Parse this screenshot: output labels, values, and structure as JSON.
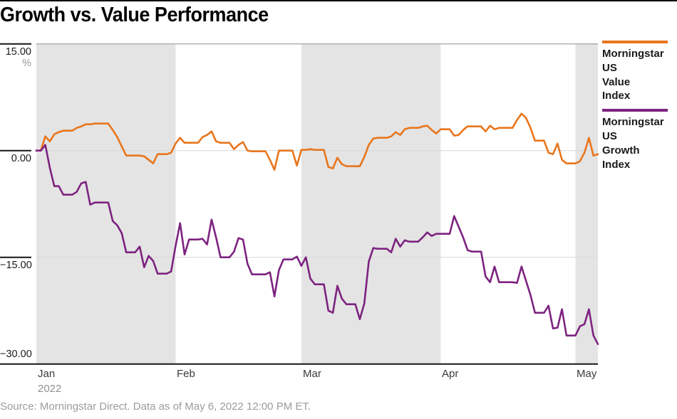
{
  "page": {
    "title": "Growth vs. Value Performance",
    "source_note": "Source: Morningstar Direct. Data as of May 6, 2022 12:00 PM ET."
  },
  "chart_data": {
    "type": "line",
    "title": "Growth vs. Value Performance",
    "y_unit": "%",
    "ylim": [
      -30,
      15
    ],
    "x_days_range": [
      0,
      125
    ],
    "grid": "horizontal-only",
    "legend_position": "right",
    "y_ticks": [
      {
        "value": 15,
        "label": "15.00"
      },
      {
        "value": 0,
        "label": "0.00"
      },
      {
        "value": -15,
        "label": "−15.00"
      },
      {
        "value": -30,
        "label": "−30.00"
      }
    ],
    "x_axis": {
      "months": [
        {
          "label": "Jan",
          "sublabel": "2022",
          "start_day": 0,
          "end_day": 31,
          "shaded": true
        },
        {
          "label": "Feb",
          "start_day": 31,
          "end_day": 59,
          "shaded": false
        },
        {
          "label": "Mar",
          "start_day": 59,
          "end_day": 90,
          "shaded": true
        },
        {
          "label": "Apr",
          "start_day": 90,
          "end_day": 120,
          "shaded": false
        },
        {
          "label": "May",
          "start_day": 120,
          "end_day": 125,
          "shaded": true
        }
      ]
    },
    "colors": {
      "value_series": "#E8761D",
      "growth_series": "#7D2380",
      "band": "#E4E4E4",
      "gridline": "#D7D7D7",
      "plot_top_line": "#8D8D8D",
      "axis": "#161616"
    },
    "legend": [
      {
        "id": "value",
        "label": "Morningstar US Value Index",
        "color": "#E8761D"
      },
      {
        "id": "growth",
        "label": "Morningstar US Growth Index",
        "color": "#7D2380"
      }
    ],
    "dates": [
      "Dec 31",
      "Jan 3",
      "Jan 4",
      "Jan 5",
      "Jan 6",
      "Jan 7",
      "Jan 10",
      "Jan 11",
      "Jan 12",
      "Jan 13",
      "Jan 14",
      "Jan 18",
      "Jan 19",
      "Jan 20",
      "Jan 21",
      "Jan 24",
      "Jan 25",
      "Jan 26",
      "Jan 27",
      "Jan 28",
      "Jan 31",
      "Feb 1",
      "Feb 2",
      "Feb 3",
      "Feb 4",
      "Feb 7",
      "Feb 8",
      "Feb 9",
      "Feb 10",
      "Feb 11",
      "Feb 14",
      "Feb 15",
      "Feb 16",
      "Feb 17",
      "Feb 18",
      "Feb 22",
      "Feb 23",
      "Feb 24",
      "Feb 25",
      "Feb 28",
      "Mar 1",
      "Mar 2",
      "Mar 3",
      "Mar 4",
      "Mar 7",
      "Mar 8",
      "Mar 9",
      "Mar 10",
      "Mar 11",
      "Mar 14",
      "Mar 15",
      "Mar 16",
      "Mar 17",
      "Mar 18",
      "Mar 21",
      "Mar 22",
      "Mar 23",
      "Mar 24",
      "Mar 25",
      "Mar 28",
      "Mar 29",
      "Mar 30",
      "Mar 31",
      "Apr 1",
      "Apr 4",
      "Apr 5",
      "Apr 6",
      "Apr 7",
      "Apr 8",
      "Apr 11",
      "Apr 12",
      "Apr 13",
      "Apr 14",
      "Apr 18",
      "Apr 19",
      "Apr 20",
      "Apr 21",
      "Apr 22",
      "Apr 25",
      "Apr 26",
      "Apr 27",
      "Apr 28",
      "Apr 29",
      "May 2",
      "May 3",
      "May 4",
      "May 5",
      "May 6"
    ],
    "days": [
      0,
      2,
      3,
      4,
      5,
      6,
      9,
      10,
      11,
      12,
      13,
      17,
      18,
      19,
      20,
      23,
      24,
      25,
      26,
      27,
      30,
      31,
      32,
      33,
      34,
      37,
      38,
      39,
      40,
      41,
      44,
      45,
      46,
      47,
      48,
      52,
      53,
      54,
      55,
      58,
      59,
      60,
      61,
      62,
      65,
      66,
      67,
      68,
      69,
      72,
      73,
      74,
      75,
      76,
      79,
      80,
      81,
      82,
      83,
      86,
      87,
      88,
      89,
      90,
      93,
      94,
      95,
      96,
      97,
      100,
      101,
      102,
      103,
      107,
      108,
      109,
      110,
      111,
      114,
      115,
      116,
      117,
      118,
      121,
      122,
      123,
      124,
      125
    ],
    "series": [
      {
        "id": "value",
        "name": "Morningstar US Value Index",
        "color": "#E8761D",
        "values": [
          0.0,
          2.0,
          1.3,
          2.3,
          2.6,
          2.8,
          3.2,
          3.4,
          3.7,
          3.7,
          3.8,
          2.9,
          1.9,
          0.6,
          -0.7,
          -0.7,
          -0.8,
          -1.3,
          -1.8,
          -0.5,
          -0.3,
          1.0,
          1.8,
          1.1,
          1.1,
          1.9,
          2.2,
          2.7,
          1.3,
          1.1,
          0.2,
          0.8,
          1.2,
          0.0,
          -0.1,
          -1.3,
          -2.7,
          0.0,
          0.0,
          -2.1,
          0.1,
          0.1,
          0.2,
          0.1,
          -2.3,
          -2.5,
          -1.0,
          -1.9,
          -2.2,
          -2.2,
          -0.9,
          0.8,
          1.7,
          1.8,
          2.0,
          2.6,
          2.2,
          3.0,
          3.2,
          3.4,
          3.5,
          2.9,
          2.4,
          3.0,
          2.1,
          2.2,
          2.9,
          3.4,
          3.4,
          2.7,
          3.5,
          3.0,
          3.2,
          4.3,
          5.2,
          4.6,
          3.2,
          1.4,
          -0.3,
          -0.5,
          1.0,
          -1.3,
          -1.8,
          -1.5,
          -0.3,
          1.8,
          -0.7,
          -0.5
        ]
      },
      {
        "id": "growth",
        "name": "Morningstar US Growth Index",
        "color": "#7D2380",
        "values": [
          0.0,
          0.8,
          -2.4,
          -5.0,
          -5.0,
          -6.2,
          -5.8,
          -4.6,
          -4.4,
          -7.6,
          -7.3,
          -9.9,
          -10.5,
          -11.6,
          -14.3,
          -13.5,
          -16.4,
          -14.8,
          -15.5,
          -17.3,
          -17.0,
          -13.4,
          -10.2,
          -14.6,
          -12.5,
          -12.4,
          -13.2,
          -9.7,
          -12.2,
          -15.0,
          -14.2,
          -12.3,
          -12.5,
          -15.9,
          -17.4,
          -17.1,
          -20.5,
          -16.8,
          -15.3,
          -14.9,
          -16.2,
          -15.0,
          -18.0,
          -18.8,
          -22.5,
          -22.8,
          -19.0,
          -20.8,
          -21.6,
          -23.7,
          -21.5,
          -15.6,
          -13.7,
          -13.8,
          -14.3,
          -12.4,
          -13.5,
          -12.6,
          -12.8,
          -12.2,
          -11.5,
          -12.0,
          -11.7,
          -11.7,
          -9.2,
          -10.7,
          -12.2,
          -14.0,
          -14.2,
          -17.7,
          -18.5,
          -16.3,
          -18.5,
          -18.6,
          -16.3,
          -18.3,
          -20.3,
          -22.8,
          -21.8,
          -25.0,
          -24.9,
          -22.3,
          -26.0,
          -24.7,
          -24.4,
          -22.3,
          -26.0,
          -27.2
        ]
      }
    ]
  }
}
